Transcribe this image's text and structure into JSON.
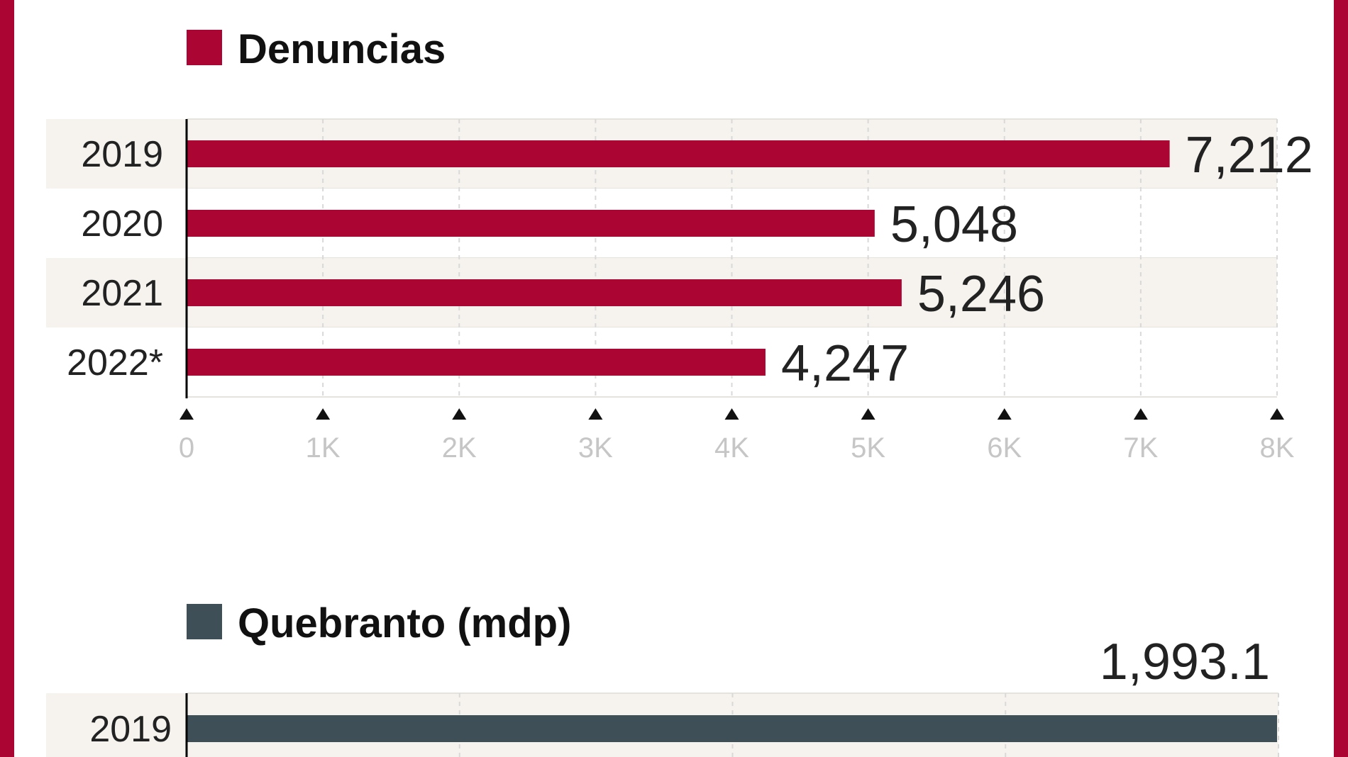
{
  "colors": {
    "frame": "#ab0533",
    "denuncias": "#ab0533",
    "quebranto": "#3f4f57",
    "band": "#f6f3ef",
    "grid": "#d9d9d9"
  },
  "chart_data": [
    {
      "type": "bar",
      "orientation": "horizontal",
      "title": "Denuncias",
      "categories": [
        "2019",
        "2020",
        "2021",
        "2022*"
      ],
      "values": [
        7212,
        5048,
        5246,
        4247
      ],
      "value_labels": [
        "7,212",
        "5,048",
        "5,246",
        "4,247"
      ],
      "xlim": [
        0,
        8000
      ],
      "ticks": [
        0,
        1000,
        2000,
        3000,
        4000,
        5000,
        6000,
        7000,
        8000
      ],
      "tick_labels": [
        "0",
        "1K",
        "2K",
        "3K",
        "4K",
        "5K",
        "6K",
        "7K",
        "8K"
      ],
      "grid": true,
      "color": "#ab0533"
    },
    {
      "type": "bar",
      "orientation": "horizontal",
      "title": "Quebranto (mdp)",
      "categories": [
        "2019"
      ],
      "values": [
        1993.1
      ],
      "value_labels": [
        "1,993.1"
      ],
      "grid": true,
      "color": "#3f4f57"
    }
  ]
}
